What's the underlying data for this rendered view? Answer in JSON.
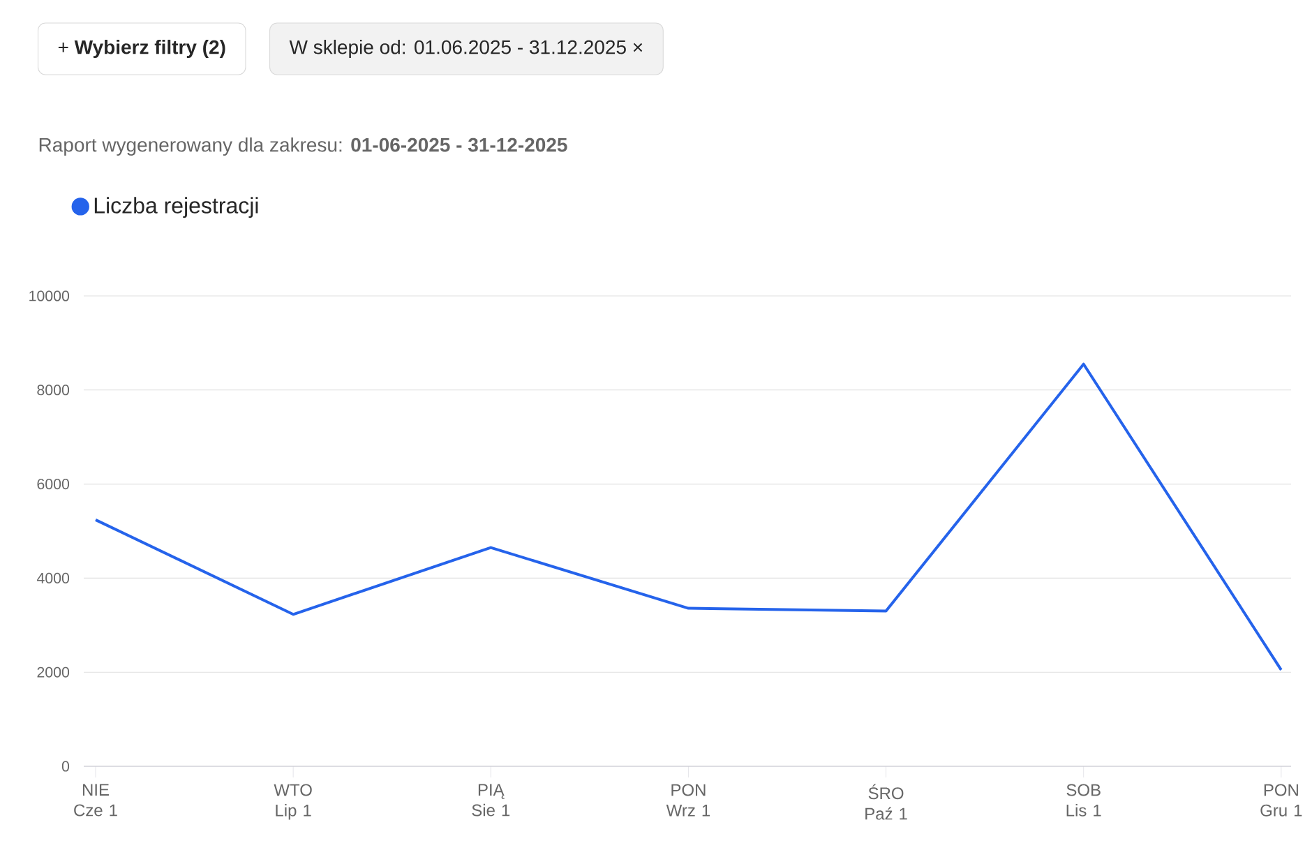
{
  "chart_data": {
    "type": "line",
    "subtitle": "Raport wygenerowany dla zakresu: **01-06-2025 - 31-12-2025**",
    "annotations": [
      "+ **Wybierz filtry (2)**",
      "W sklepie od: 01.06.2025 - 31.12.2025 ×"
    ],
    "categories": [
      "NIE Cze 1",
      "WTO Lip 1",
      "PIĄ Sie 1",
      "PON Wrz 1",
      "ŚRO Paź 1",
      "SOB Lis 1",
      "PON Gru 1"
    ],
    "series": [
      {
        "name": "Liczba rejestracji",
        "color": "#2563eb",
        "values": [
          5240,
          3230,
          4650,
          3360,
          3300,
          8550,
          2050
        ]
      }
    ],
    "ylim": [
      0,
      10000
    ],
    "yticks": [
      0,
      2000,
      4000,
      6000,
      8000,
      10000
    ],
    "grid": "y",
    "legend": "top left"
  }
}
